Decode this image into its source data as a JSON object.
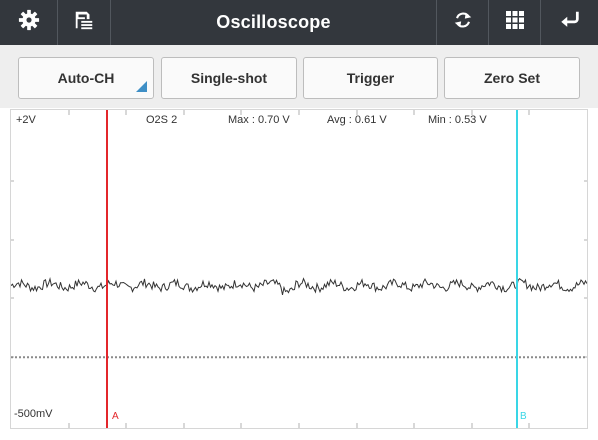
{
  "header": {
    "title": "Oscilloscope",
    "left_icons": [
      "gear-icon",
      "save-list-icon"
    ],
    "right_icons": [
      "refresh-icon",
      "grid-icon",
      "back-icon"
    ]
  },
  "toolbar": {
    "auto_ch": "Auto-CH",
    "single_shot": "Single-shot",
    "trigger": "Trigger",
    "zero_set": "Zero Set"
  },
  "scope": {
    "y_max_label": "+2V",
    "y_min_label": "-500mV",
    "channel": "O2S 2",
    "max": "Max : 0.70 V",
    "avg": "Avg : 0.61 V",
    "min": "Min : 0.53 V",
    "cursor_a": "A",
    "cursor_b": "B",
    "colors": {
      "cursor_a": "#e3262b",
      "cursor_b": "#39d6e6",
      "trace": "#333333",
      "zero_line": "#8a8a8a",
      "accent": "#3f8fc6"
    },
    "y_axis": {
      "min_v": -0.5,
      "max_v": 2.0,
      "zero_v": 0.0
    },
    "signal_summary_v": {
      "max": 0.7,
      "avg": 0.61,
      "min": 0.53
    },
    "cursor_a_fraction": 0.167,
    "cursor_b_fraction": 0.878
  }
}
